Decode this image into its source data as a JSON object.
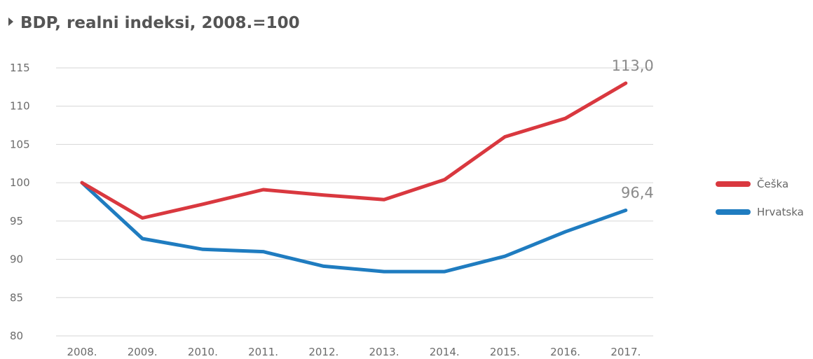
{
  "chart_data": {
    "type": "line",
    "title": "BDP, realni indeksi, 2008.=100",
    "title_marker_icon": "triangle-right-icon",
    "xlabel": "",
    "ylabel": "",
    "categories": [
      "2008.",
      "2009.",
      "2010.",
      "2011.",
      "2012.",
      "2013.",
      "2014.",
      "2015.",
      "2016.",
      "2017."
    ],
    "ylim": [
      80,
      115
    ],
    "yticks": [
      "80",
      "85",
      "90",
      "95",
      "100",
      "105",
      "110",
      "115"
    ],
    "ytick_values": [
      80,
      85,
      90,
      95,
      100,
      105,
      110,
      115
    ],
    "grid": true,
    "legend_position": "right",
    "series": [
      {
        "name": "Češka",
        "color": "#d9383f",
        "values": [
          100,
          95.4,
          97.2,
          99.1,
          98.4,
          97.8,
          100.4,
          106.0,
          108.4,
          113.0
        ],
        "end_label": "113,0"
      },
      {
        "name": "Hrvatska",
        "color": "#1f7cc0",
        "values": [
          100,
          92.7,
          91.3,
          91.0,
          89.1,
          88.4,
          88.4,
          90.4,
          93.6,
          96.4
        ],
        "end_label": "96,4"
      }
    ],
    "colors": {
      "title": "#555555",
      "tick_text": "#6b6b6b",
      "grid": "#d6d6d6",
      "legend_text": "#666666",
      "end_label": "#8a8a8a"
    }
  }
}
